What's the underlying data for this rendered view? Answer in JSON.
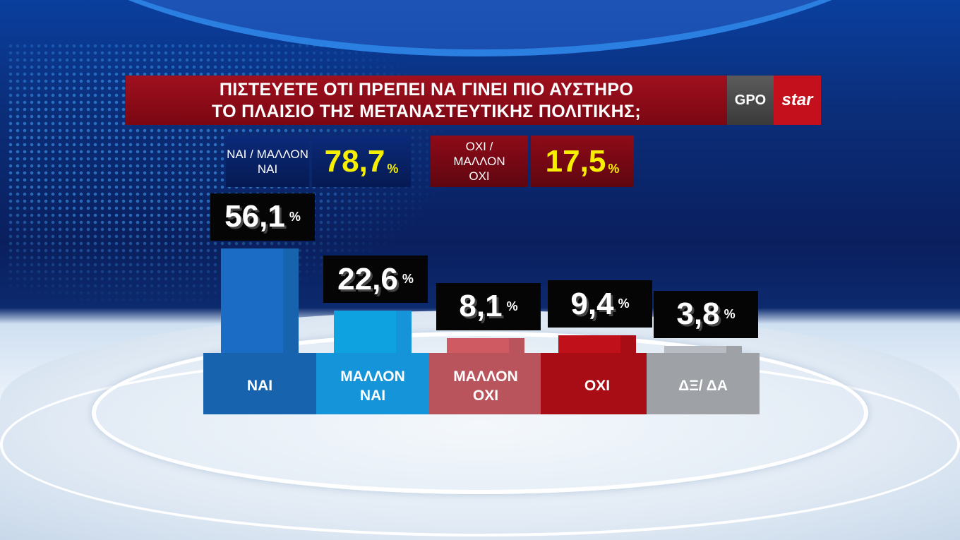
{
  "header": {
    "title_line1": "ΠΙΣΤΕΥΕΤΕ ΟΤΙ ΠΡΕΠΕΙ ΝΑ ΓΙΝΕΙ ΠΙΟ ΑΥΣΤΗΡΟ",
    "title_line2": "ΤΟ ΠΛΑΙΣΙΟ ΤΗΣ ΜΕΤΑΝΑΣΤΕΥΤΙΚΗΣ ΠΟΛΙΤΙΚΗΣ;",
    "logo_gpo": "GPO",
    "logo_star": "star"
  },
  "summary": [
    {
      "label": "ΝΑΙ / ΜΑΛΛΟΝ ΝΑΙ",
      "value": "78,7",
      "unit": "%"
    },
    {
      "label": "ΟΧΙ / ΜΑΛΛΟΝ ΟΧΙ",
      "value": "17,5",
      "unit": "%"
    }
  ],
  "chart_data": {
    "type": "bar",
    "title": "ΠΙΣΤΕΥΕΤΕ ΟΤΙ ΠΡΕΠΕΙ ΝΑ ΓΙΝΕΙ ΠΙΟ ΑΥΣΤΗΡΟ ΤΟ ΠΛΑΙΣΙΟ ΤΗΣ ΜΕΤΑΝΑΣΤΕΥΤΙΚΗΣ ΠΟΛΙΤΙΚΗΣ;",
    "categories": [
      "ΝΑΙ",
      "ΜΑΛΛΟΝ ΝΑΙ",
      "ΜΑΛΛΟΝ ΟΧΙ",
      "ΟΧΙ",
      "ΔΞ/ ΔΑ"
    ],
    "values": [
      56.1,
      22.6,
      8.1,
      9.4,
      3.8
    ],
    "labels": [
      "56,1",
      "22,6",
      "8,1",
      "9,4",
      "3,8"
    ],
    "unit": "%",
    "colors": [
      "#1a6cc4",
      "#0ea3e0",
      "#d05a62",
      "#c0101a",
      "#b8bcc2"
    ],
    "base_colors": [
      "#1763ae",
      "#1594da",
      "#b9545c",
      "#a80c14",
      "#9ea1a6"
    ]
  }
}
